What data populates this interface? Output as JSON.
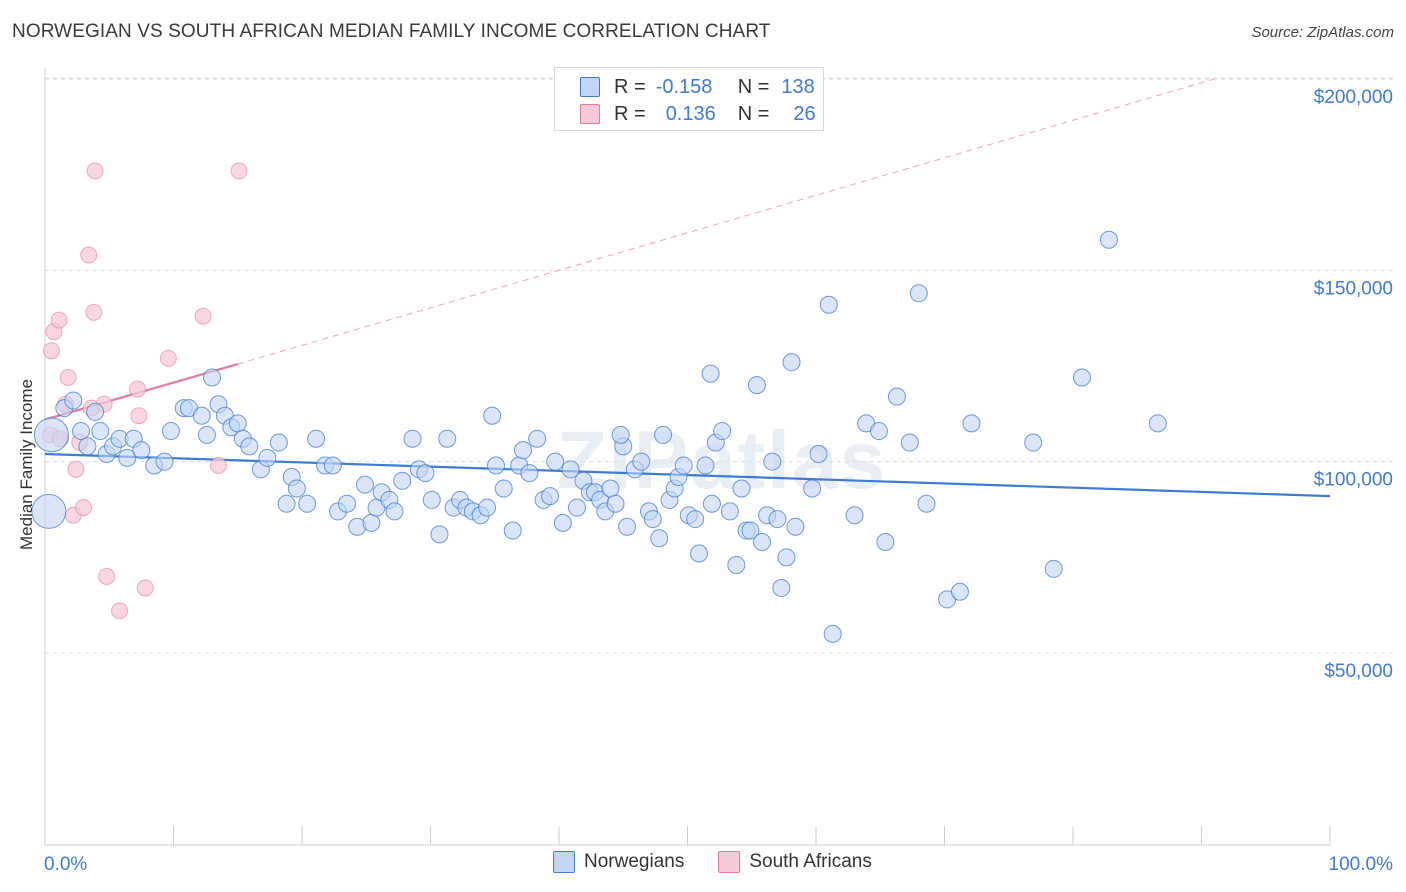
{
  "title": "NORWEGIAN VS SOUTH AFRICAN MEDIAN FAMILY INCOME CORRELATION CHART",
  "source": "Source: ZipAtlas.com",
  "watermark": "ZIPatlas",
  "colors": {
    "blue": "#3d7bd4",
    "blue_fill": "#c2d6f3",
    "pink": "#e57a9f",
    "pink_fill": "#f7c8d7",
    "grid": "#dddddd",
    "axis_text": "#3d7bd4"
  },
  "legend": {
    "rows": [
      {
        "r_label": "R =",
        "r_value": "-0.158",
        "n_label": "N =",
        "n_value": "138"
      },
      {
        "r_label": "R =",
        "r_value": "0.136",
        "n_label": "N =",
        "n_value": "26"
      }
    ]
  },
  "chart_data": {
    "type": "scatter",
    "title": "NORWEGIAN VS SOUTH AFRICAN MEDIAN FAMILY INCOME CORRELATION CHART",
    "xlabel": "",
    "ylabel": "Median Family Income",
    "xlim": [
      0,
      100
    ],
    "ylim": [
      0,
      210000
    ],
    "x_tick_labels": [
      "0.0%",
      "100.0%"
    ],
    "y_ticks": [
      50000,
      100000,
      150000,
      200000
    ],
    "y_tick_labels": [
      "$50,000",
      "$100,000",
      "$150,000",
      "$200,000"
    ],
    "grid": true,
    "legend_position": "top-center",
    "series": [
      {
        "name": "Norwegians",
        "color": "#3d7bd4",
        "r": -0.158,
        "n": 138,
        "trend": {
          "x": [
            0,
            100
          ],
          "y": [
            102000,
            91000
          ]
        },
        "points": [
          [
            0.3,
            87000,
            "large"
          ],
          [
            0.5,
            107000,
            "large"
          ],
          [
            1.5,
            114000
          ],
          [
            2.2,
            116000
          ],
          [
            2.8,
            108000
          ],
          [
            3.3,
            104000
          ],
          [
            3.9,
            113000
          ],
          [
            4.3,
            108000
          ],
          [
            4.8,
            102000
          ],
          [
            5.3,
            104000
          ],
          [
            5.8,
            106000
          ],
          [
            6.4,
            101000
          ],
          [
            6.9,
            106000
          ],
          [
            7.5,
            103000
          ],
          [
            8.5,
            99000
          ],
          [
            9.3,
            100000
          ],
          [
            9.8,
            108000
          ],
          [
            10.8,
            114000
          ],
          [
            11.2,
            114000
          ],
          [
            12.2,
            112000
          ],
          [
            12.6,
            107000
          ],
          [
            13.0,
            122000
          ],
          [
            13.5,
            115000
          ],
          [
            14.0,
            112000
          ],
          [
            14.5,
            109000
          ],
          [
            15.0,
            110000
          ],
          [
            15.4,
            106000
          ],
          [
            15.9,
            104000
          ],
          [
            16.8,
            98000
          ],
          [
            17.3,
            101000
          ],
          [
            18.2,
            105000
          ],
          [
            18.8,
            89000
          ],
          [
            19.2,
            96000
          ],
          [
            19.6,
            93000
          ],
          [
            20.4,
            89000
          ],
          [
            21.1,
            106000
          ],
          [
            21.8,
            99000
          ],
          [
            22.4,
            99000
          ],
          [
            22.8,
            87000
          ],
          [
            23.5,
            89000
          ],
          [
            24.3,
            83000
          ],
          [
            24.9,
            94000
          ],
          [
            25.4,
            84000
          ],
          [
            25.8,
            88000
          ],
          [
            26.2,
            92000
          ],
          [
            26.8,
            90000
          ],
          [
            27.2,
            87000
          ],
          [
            27.8,
            95000
          ],
          [
            28.6,
            106000
          ],
          [
            29.1,
            98000
          ],
          [
            29.6,
            97000
          ],
          [
            30.1,
            90000
          ],
          [
            30.7,
            81000
          ],
          [
            31.3,
            106000
          ],
          [
            31.8,
            88000
          ],
          [
            32.3,
            90000
          ],
          [
            32.8,
            88000
          ],
          [
            33.3,
            87000
          ],
          [
            33.9,
            86000
          ],
          [
            34.4,
            88000
          ],
          [
            34.8,
            112000
          ],
          [
            35.1,
            99000
          ],
          [
            35.7,
            93000
          ],
          [
            36.4,
            82000
          ],
          [
            36.9,
            99000
          ],
          [
            37.2,
            103000
          ],
          [
            37.7,
            97000
          ],
          [
            38.3,
            106000
          ],
          [
            38.8,
            90000
          ],
          [
            39.3,
            91000
          ],
          [
            39.7,
            100000
          ],
          [
            40.3,
            84000
          ],
          [
            40.9,
            98000
          ],
          [
            41.4,
            88000
          ],
          [
            41.9,
            95000
          ],
          [
            42.4,
            92000
          ],
          [
            42.8,
            92000
          ],
          [
            43.2,
            90000
          ],
          [
            43.6,
            87000
          ],
          [
            44.0,
            93000
          ],
          [
            44.4,
            89000
          ],
          [
            45.0,
            104000
          ],
          [
            45.3,
            83000
          ],
          [
            45.9,
            98000
          ],
          [
            46.4,
            100000
          ],
          [
            47.0,
            87000
          ],
          [
            47.3,
            85000
          ],
          [
            47.8,
            80000
          ],
          [
            48.1,
            107000
          ],
          [
            48.6,
            90000
          ],
          [
            49.0,
            93000
          ],
          [
            49.3,
            96000
          ],
          [
            49.7,
            99000
          ],
          [
            50.1,
            86000
          ],
          [
            50.6,
            85000
          ],
          [
            50.9,
            76000
          ],
          [
            51.4,
            99000
          ],
          [
            51.9,
            89000
          ],
          [
            52.2,
            105000
          ],
          [
            52.7,
            108000
          ],
          [
            53.3,
            87000
          ],
          [
            53.8,
            73000
          ],
          [
            54.2,
            93000
          ],
          [
            54.6,
            82000
          ],
          [
            54.9,
            82000
          ],
          [
            55.4,
            120000
          ],
          [
            55.8,
            79000
          ],
          [
            56.2,
            86000
          ],
          [
            56.6,
            100000
          ],
          [
            57.0,
            85000
          ],
          [
            57.3,
            67000
          ],
          [
            57.7,
            75000
          ],
          [
            58.1,
            126000
          ],
          [
            58.4,
            83000
          ],
          [
            59.7,
            93000
          ],
          [
            60.2,
            102000
          ],
          [
            61.0,
            141000
          ],
          [
            61.3,
            55000
          ],
          [
            63.0,
            86000
          ],
          [
            63.9,
            110000
          ],
          [
            64.9,
            108000
          ],
          [
            65.4,
            79000
          ],
          [
            66.3,
            117000
          ],
          [
            67.3,
            105000
          ],
          [
            68.0,
            144000
          ],
          [
            68.6,
            89000
          ],
          [
            70.2,
            64000
          ],
          [
            71.2,
            66000
          ],
          [
            72.1,
            110000
          ],
          [
            76.9,
            105000
          ],
          [
            78.5,
            72000
          ],
          [
            80.7,
            122000
          ],
          [
            82.8,
            158000
          ],
          [
            86.6,
            110000
          ],
          [
            51.8,
            123000
          ],
          [
            44.8,
            107000
          ]
        ]
      },
      {
        "name": "South Africans",
        "color": "#e57a9f",
        "r": 0.136,
        "n": 26,
        "trend_solid": {
          "x": [
            0,
            15
          ],
          "y": [
            111000,
            125500
          ]
        },
        "trend_dashed": {
          "x": [
            15,
            91
          ],
          "y": [
            125500,
            200000
          ]
        },
        "points": [
          [
            0.4,
            107000
          ],
          [
            0.5,
            129000
          ],
          [
            0.7,
            134000
          ],
          [
            1.1,
            137000
          ],
          [
            1.2,
            106000
          ],
          [
            1.6,
            115000
          ],
          [
            1.8,
            122000
          ],
          [
            2.2,
            86000
          ],
          [
            2.4,
            98000
          ],
          [
            2.7,
            105000
          ],
          [
            3.0,
            88000
          ],
          [
            3.4,
            154000
          ],
          [
            3.6,
            114000
          ],
          [
            3.8,
            139000
          ],
          [
            3.9,
            176000
          ],
          [
            4.6,
            115000
          ],
          [
            4.8,
            70000
          ],
          [
            5.8,
            61000
          ],
          [
            7.2,
            119000
          ],
          [
            7.3,
            112000
          ],
          [
            7.8,
            67000
          ],
          [
            9.6,
            127000
          ],
          [
            12.3,
            138000
          ],
          [
            13.5,
            99000
          ],
          [
            15.1,
            176000
          ]
        ]
      }
    ]
  },
  "bottom_legend": {
    "items": [
      {
        "label": "Norwegians"
      },
      {
        "label": "South Africans"
      }
    ]
  }
}
